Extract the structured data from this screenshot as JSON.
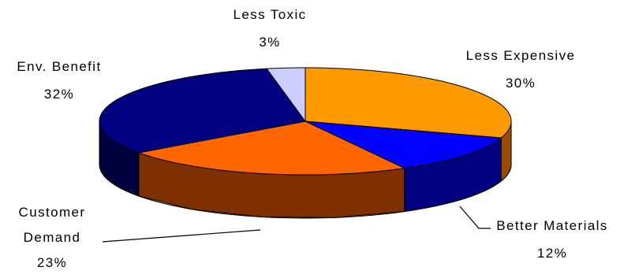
{
  "chart_data": {
    "type": "pie",
    "style": "3d-exploded-none",
    "categories": [
      "Less Expensive",
      "Better Materials",
      "Customer Demand",
      "Env. Benefit",
      "Less Toxic"
    ],
    "values": [
      30,
      12,
      23,
      32,
      3
    ],
    "value_labels": [
      "30%",
      "12%",
      "23%",
      "32%",
      "3%"
    ],
    "label_lines": {
      "Customer Demand": [
        "Customer",
        "Demand"
      ]
    },
    "colors": {
      "Less Expensive": "#FF9900",
      "Better Materials": "#0000FF",
      "Customer Demand": "#FF6600",
      "Env. Benefit": "#000080",
      "Less Toxic": "#CCCCFF"
    },
    "side_colors": {
      "Less Expensive": "#994C00",
      "Better Materials": "#000080",
      "Customer Demand": "#7F3000",
      "Env. Benefit": "#000040",
      "Less Toxic": "#7A7A99"
    },
    "start": "12 o'clock, clockwise",
    "legend": "none",
    "title": "",
    "leader_lines": [
      "Customer Demand",
      "Better Materials"
    ]
  }
}
